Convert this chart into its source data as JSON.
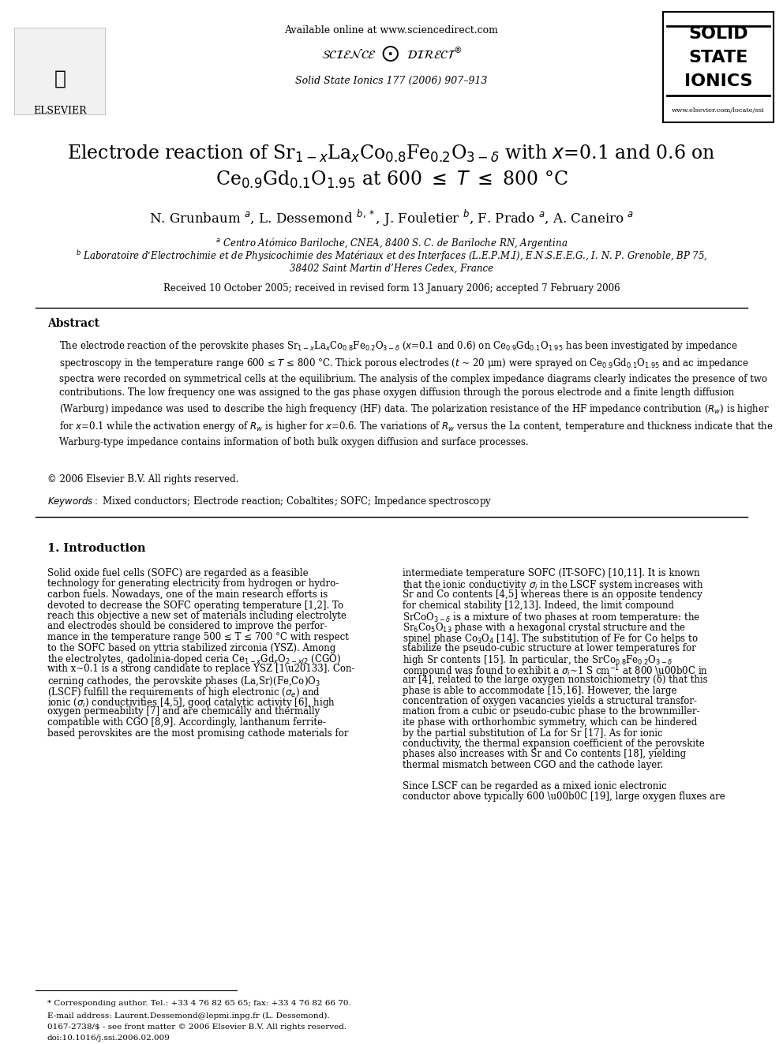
{
  "bg_color": "#ffffff",
  "header_line_text": "Available online at www.sciencedirect.com",
  "journal_ref": "Solid State Ionics 177 (2006) 907–913",
  "journal_name_lines": [
    "SOLID",
    "STATE",
    "IONICS"
  ],
  "journal_url": "www.elsevier.com/locate/ssi",
  "elsevier_text": "ELSEVIER",
  "title_line1": "Electrode reaction of Sr",
  "title_line2": "Ce",
  "title_full": "Electrode reaction of Sr$_{1-x}$La$_x$Co$_{0.8}$Fe$_{0.2}$O$_{3-δ}$ with $x$=0.1 and 0.6 on\nCe$_{0.9}$Gd$_{0.1}$O$_{1.95}$ at 600 ≤ $T$ ≤ 800 °C",
  "authors": "N. Grunbaum $^a$, L. Dessemond $^{b,*}$, J. Fouletier $^b$, F. Prado $^a$, A. Caneiro $^a$",
  "affil_a": "$^a$ Centro Atómico Bariloche, CNEA, 8400 S. C. de Bariloche RN, Argentina",
  "affil_b": "$^b$ Laboratoire d’Electrochimie et de Physicochimie des Matériaux et des Interfaces (L.E.P.M.I), E.N.S.E.E.G., I. N. P. Grenoble, BP 75,",
  "affil_b2": "38402 Saint Martin d’Heres Cedex, France",
  "received": "Received 10 October 2005; received in revised form 13 January 2006; accepted 7 February 2006",
  "abstract_title": "Abstract",
  "abstract_text": "The electrode reaction of the perovskite phases Sr$_{1-x}$La$_x$Co$_{0.8}$Fe$_{0.2}$O$_{3-δ}$ (x=0.1 and 0.6) on Ce$_{0.9}$Gd$_{0.1}$O$_{1.95}$ has been investigated by impedance spectroscopy in the temperature range 600 ≤ $T$ ≤ 800 °C. Thick porous electrodes ($t$ ~ 20 μm) were sprayed on Ce$_{0.9}$Gd$_{0.1}$O$_{1.95}$ and ac impedance spectra were recorded on symmetrical cells at the equilibrium. The analysis of the complex impedance diagrams clearly indicates the presence of two contributions. The low frequency one was assigned to the gas phase oxygen diffusion through the porous electrode and a finite length diffusion (Warburg) impedance was used to describe the high frequency (HF) data. The polarization resistance of the HF impedance contribution ($R_w$) is higher for x=0.1 while the activation energy of $R_w$ is higher for x=0.6. The variations of $R_w$ versus the La content, temperature and thickness indicate that the Warburg-type impedance contains information of both bulk oxygen diffusion and surface processes.",
  "copyright": "© 2006 Elsevier B.V. All rights reserved.",
  "keywords_label": "Keywords:",
  "keywords_text": "Mixed conductors; Electrode reaction; Cobaltites; SOFC; Impedance spectroscopy",
  "section1_title": "1. Introduction",
  "intro_col1_para1": "Solid oxide fuel cells (SOFC) are regarded as a feasible technology for generating electricity from hydrogen or hydrocarbon fuels. Nowadays, one of the main research efforts is devoted to decrease the SOFC operating temperature [1,2]. To reach this objective a new set of materials including electrolyte and electrodes should be considered to improve the performance in the temperature range 500 ≤ T ≤ 700 °C with respect to the SOFC based on yttria stabilized zirconia (YSZ). Among the electrolytes, gadolinia-doped ceria Ce$_{1-x}$Gd$_x$O$_{2-x/2}$ (CGO) with x~0.1 is a strong candidate to replace YSZ [1–3]. Concerning cathodes, the perovskite phases (La,Sr)(Fe,Co)O$_3$ (LSCF) fulfill the requirements of high electronic (σ$_e$) and ionic (σ$_i$) conductivities [4,5], good catalytic activity [6], high oxygen permeability [7] and are chemically and thermally compatible with CGO [8,9]. Accordingly, lanthanum ferrite-based perovskites are the most promising cathode materials for",
  "intro_col2_para1": "intermediate temperature SOFC (IT-SOFC) [10,11]. It is known that the ionic conductivity σ$_i$ in the LSCF system increases with Sr and Co contents [4,5] whereas there is an opposite tendency for chemical stability [12,13]. Indeed, the limit compound SrCoO$_{3-δ}$ is a mixture of two phases at room temperature: the Sr$_6$Co$_5$O$_{13}$ phase with a hexagonal crystal structure and the spinel phase Co$_3$O$_4$ [14]. The substitution of Fe for Co helps to stabilize the pseudo-cubic structure at lower temperatures for high Sr contents [15]. In particular, the SrCo$_{0.8}$Fe$_{0.2}$O$_{3-δ}$ compound was found to exhibit a σ$_i$~1 S cm$^{-1}$ at 800 °C in air [4], related to the large oxygen nonstoichiometry (δ) that this phase is able to accommodate [15,16]. However, the large concentration of oxygen vacancies yields a structural transformation from a cubic or pseudo-cubic phase to the brownmillerite phase with orthorhombic symmetry, which can be hindered by the partial substitution of La for Sr [17]. As for ionic conductivity, the thermal expansion coefficient of the perovskite phases also increases with Sr and Co contents [18], yielding thermal mismatch between CGO and the cathode layer.",
  "intro_col2_para2": "Since LSCF can be regarded as a mixed ionic electronic conductor above typically 600 °C [19], large oxygen fluxes are",
  "footnote_star": "* Corresponding author. Tel.: +33 4 76 82 65 65; fax: +33 4 76 82 66 70.",
  "footnote_email": "E-mail address: Laurent.Dessemond@lepmi.inpg.fr (L. Dessemond).",
  "footnote_issn": "0167-2738/$ - see front matter © 2006 Elsevier B.V. All rights reserved.",
  "footnote_doi": "doi:10.1016/j.ssi.2006.02.009"
}
